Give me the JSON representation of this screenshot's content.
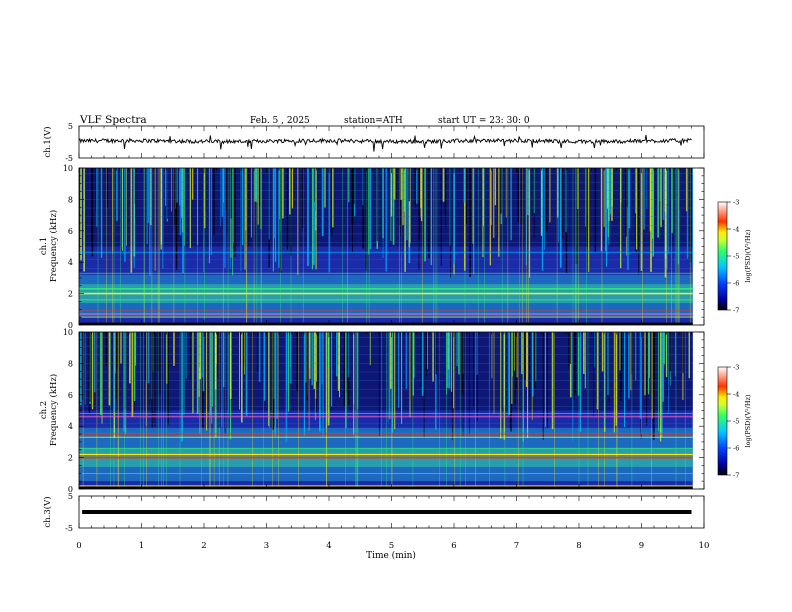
{
  "header": {
    "title": "VLF  Spectra",
    "date": "Feb. 5  , 2025",
    "station": "station=ATH",
    "start_ut": "start  UT  =   23: 30: 0"
  },
  "colors": {
    "spectrogram_background": "#1a2aa8",
    "colormap": [
      "#000000",
      "#0000a0",
      "#0044ff",
      "#00c8ff",
      "#33ff66",
      "#ccff33",
      "#ffee00",
      "#ff3300",
      "#ffffff"
    ]
  },
  "chart_data": [
    {
      "id": "ch1-voltage",
      "type": "line",
      "ylabel": "ch.1(V)",
      "ylim": [
        -5,
        5
      ],
      "yticks": [
        "5",
        "-5"
      ],
      "xlim": [
        0,
        10
      ],
      "series": [
        {
          "values_description_only_in_script": true
        }
      ],
      "trace_end_min": 9.8
    },
    {
      "id": "ch1-spectrogram",
      "type": "heatmap",
      "ylabel_top": "ch.1",
      "ylabel": "Frequency (kHz)",
      "ylim": [
        0,
        10
      ],
      "yticks": [
        "0",
        "2",
        "4",
        "6",
        "8",
        "10"
      ],
      "xlim": [
        0,
        10
      ],
      "bands_khz": [
        2.0,
        2.3,
        3.3,
        0.7
      ],
      "colorbar": {
        "label": "log(PSD)(V²/Hz)",
        "ticks": [
          "-3",
          "-4",
          "-5",
          "-6",
          "-7"
        ],
        "range": [
          -7,
          -3
        ]
      }
    },
    {
      "id": "ch2-spectrogram",
      "type": "heatmap",
      "ylabel_top": "ch.2",
      "ylabel": "Frequency (kHz)",
      "ylim": [
        0,
        10
      ],
      "yticks": [
        "0",
        "2",
        "4",
        "6",
        "8",
        "10"
      ],
      "xlim": [
        0,
        10
      ],
      "bands_khz": [
        2.0,
        3.5,
        4.6,
        0.2
      ],
      "colorbar": {
        "label": "log(PSD)(V²/Hz)",
        "ticks": [
          "-3",
          "-4",
          "-5",
          "-6",
          "-7"
        ],
        "range": [
          -7,
          -3
        ]
      }
    },
    {
      "id": "ch3-voltage",
      "type": "line",
      "ylabel": "ch.3(V)",
      "ylim": [
        -5,
        5
      ],
      "yticks": [
        "5",
        "-5"
      ],
      "xlim": [
        0,
        10
      ],
      "series": [
        {
          "constant_value": 0
        }
      ],
      "trace_end_min": 9.8
    }
  ],
  "xaxis": {
    "label": "Time  (min)",
    "ticks": [
      "0",
      "1",
      "2",
      "3",
      "4",
      "5",
      "6",
      "7",
      "8",
      "9",
      "10"
    ]
  }
}
